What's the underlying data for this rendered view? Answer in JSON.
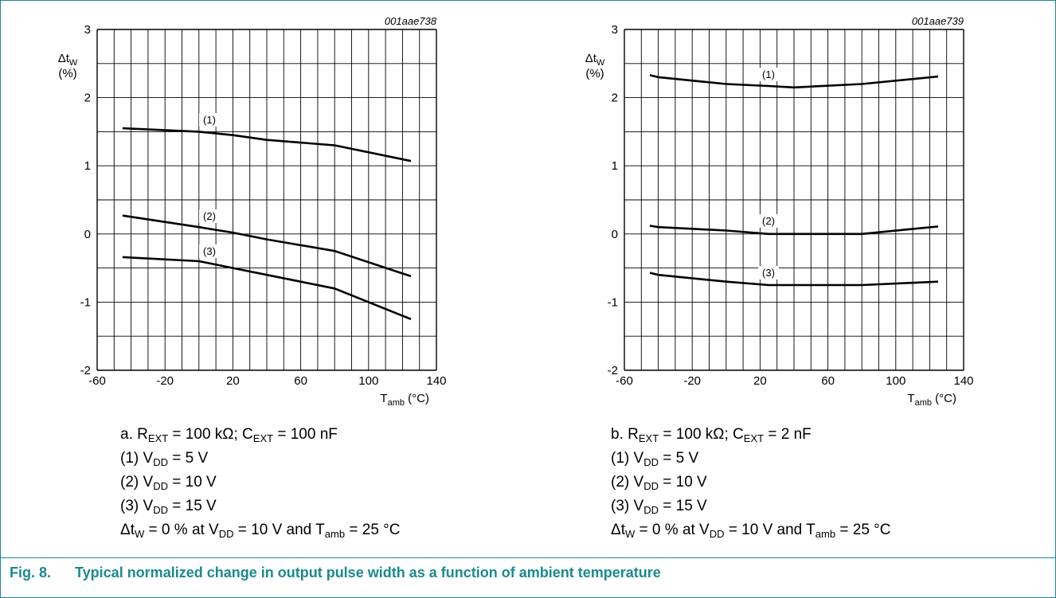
{
  "figure": {
    "number": "Fig. 8.",
    "caption": "Typical normalized change in output pulse width as a function of ambient temperature",
    "colors": {
      "accent": "#1a8a8f",
      "line": "#000000",
      "grid": "#000000"
    }
  },
  "panels": [
    {
      "id": "001aae738",
      "ylabel_top": "Δt",
      "ylabel_sub": "W",
      "ylabel_unit": "(%)",
      "xlabel_main": "T",
      "xlabel_sub": "amb",
      "xlabel_unit": " (°C)",
      "notes": {
        "cond_label": "a. R",
        "cond_r_sub": "EXT",
        "cond_mid": " = 100 kΩ; C",
        "cond_c_sub": "EXT",
        "cond_end": " = 100 nF",
        "v1_pre": "(1) V",
        "v1_sub": "DD",
        "v1_post": " = 5 V",
        "v2_pre": "(2) V",
        "v2_sub": "DD",
        "v2_post": " = 10 V",
        "v3_pre": "(3) V",
        "v3_sub": "DD",
        "v3_post": " = 15 V",
        "ref_a": "Δt",
        "ref_a_sub": "W",
        "ref_b": " = 0 % at V",
        "ref_b_sub": "DD",
        "ref_c": " = 10 V and T",
        "ref_c_sub": "amb",
        "ref_d": " = 25 °C"
      }
    },
    {
      "id": "001aae739",
      "ylabel_top": "Δt",
      "ylabel_sub": "W",
      "ylabel_unit": "(%)",
      "xlabel_main": "T",
      "xlabel_sub": "amb",
      "xlabel_unit": " (°C)",
      "notes": {
        "cond_label": "b. R",
        "cond_r_sub": "EXT",
        "cond_mid": " = 100 kΩ; C",
        "cond_c_sub": "EXT",
        "cond_end": " = 2 nF",
        "v1_pre": "(1) V",
        "v1_sub": "DD",
        "v1_post": " = 5 V",
        "v2_pre": "(2) V",
        "v2_sub": "DD",
        "v2_post": " = 10 V",
        "v3_pre": "(3) V",
        "v3_sub": "DD",
        "v3_post": " = 15 V",
        "ref_a": "Δt",
        "ref_a_sub": "W",
        "ref_b": " = 0 % at V",
        "ref_b_sub": "DD",
        "ref_c": " = 10 V and T",
        "ref_c_sub": "amb",
        "ref_d": " = 25 °C"
      }
    }
  ],
  "chart_data": [
    {
      "type": "line",
      "xlim": [
        -60,
        140
      ],
      "ylim": [
        -2,
        3
      ],
      "xticks": [
        "-60",
        "-20",
        "20",
        "60",
        "100",
        "140"
      ],
      "yticks": [
        "-2",
        "-1",
        "0",
        "1",
        "2",
        "3"
      ],
      "grid": true,
      "series": [
        {
          "name": "(1)",
          "x": [
            -45,
            0,
            20,
            40,
            80,
            125
          ],
          "y": [
            1.55,
            1.5,
            1.45,
            1.38,
            1.3,
            1.07
          ]
        },
        {
          "name": "(2)",
          "x": [
            -45,
            0,
            20,
            40,
            80,
            125
          ],
          "y": [
            0.27,
            0.1,
            0.02,
            -0.08,
            -0.25,
            -0.62
          ]
        },
        {
          "name": "(3)",
          "x": [
            -45,
            0,
            20,
            40,
            80,
            125
          ],
          "y": [
            -0.34,
            -0.4,
            -0.5,
            -0.6,
            -0.8,
            -1.25
          ]
        }
      ]
    },
    {
      "type": "line",
      "xlim": [
        -60,
        140
      ],
      "ylim": [
        -2,
        3
      ],
      "xticks": [
        "-60",
        "-20",
        "20",
        "60",
        "100",
        "140"
      ],
      "yticks": [
        "-2",
        "-1",
        "0",
        "1",
        "2",
        "3"
      ],
      "grid": true,
      "series": [
        {
          "name": "(1)",
          "x": [
            -45,
            -40,
            0,
            25,
            40,
            80,
            125
          ],
          "y": [
            2.33,
            2.3,
            2.2,
            2.17,
            2.15,
            2.2,
            2.31
          ]
        },
        {
          "name": "(2)",
          "x": [
            -45,
            -40,
            0,
            25,
            40,
            80,
            125
          ],
          "y": [
            0.12,
            0.1,
            0.05,
            0.0,
            0.0,
            0.0,
            0.11
          ]
        },
        {
          "name": "(3)",
          "x": [
            -45,
            -40,
            0,
            25,
            40,
            80,
            125
          ],
          "y": [
            -0.57,
            -0.6,
            -0.7,
            -0.75,
            -0.75,
            -0.75,
            -0.7
          ]
        }
      ]
    }
  ]
}
